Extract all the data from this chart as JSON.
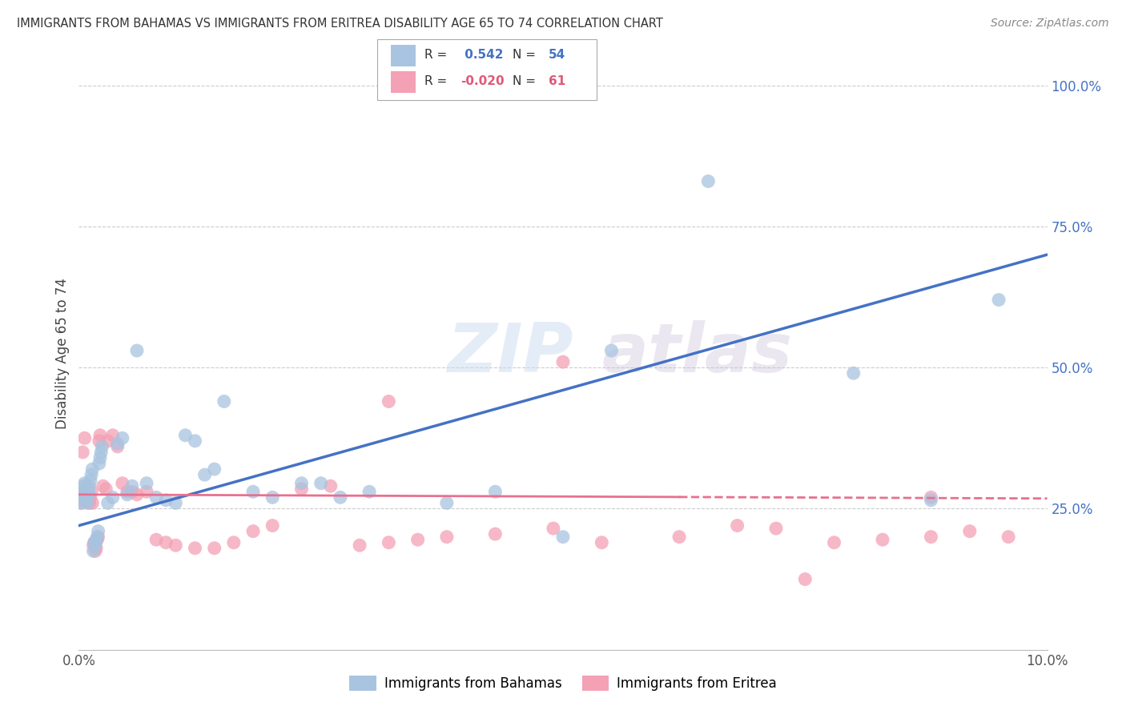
{
  "title": "IMMIGRANTS FROM BAHAMAS VS IMMIGRANTS FROM ERITREA DISABILITY AGE 65 TO 74 CORRELATION CHART",
  "source": "Source: ZipAtlas.com",
  "ylabel": "Disability Age 65 to 74",
  "xmin": 0.0,
  "xmax": 0.1,
  "ymin": 0.0,
  "ymax": 1.05,
  "x_tick_positions": [
    0.0,
    0.02,
    0.04,
    0.06,
    0.08,
    0.1
  ],
  "x_tick_labels": [
    "0.0%",
    "",
    "",
    "",
    "",
    "10.0%"
  ],
  "y_ticks_right": [
    0.25,
    0.5,
    0.75,
    1.0
  ],
  "y_tick_labels_right": [
    "25.0%",
    "50.0%",
    "75.0%",
    "100.0%"
  ],
  "legend_r_bahamas": "0.542",
  "legend_n_bahamas": "54",
  "legend_r_eritrea": "-0.020",
  "legend_n_eritrea": "61",
  "color_bahamas": "#a8c4e0",
  "color_eritrea": "#f4a0b5",
  "color_line_bahamas": "#4472c4",
  "color_line_eritrea": "#e87090",
  "watermark": "ZIPatlas",
  "bahamas_x": [
    0.0002,
    0.0003,
    0.0004,
    0.0005,
    0.0006,
    0.0007,
    0.0008,
    0.0009,
    0.001,
    0.001,
    0.0011,
    0.0012,
    0.0013,
    0.0014,
    0.0015,
    0.0016,
    0.0017,
    0.0018,
    0.0019,
    0.002,
    0.0021,
    0.0022,
    0.0023,
    0.0024,
    0.003,
    0.0035,
    0.004,
    0.0045,
    0.005,
    0.0055,
    0.006,
    0.007,
    0.008,
    0.009,
    0.01,
    0.011,
    0.012,
    0.013,
    0.014,
    0.015,
    0.018,
    0.02,
    0.023,
    0.025,
    0.027,
    0.03,
    0.038,
    0.043,
    0.05,
    0.055,
    0.065,
    0.08,
    0.088,
    0.095
  ],
  "bahamas_y": [
    0.26,
    0.27,
    0.28,
    0.29,
    0.295,
    0.27,
    0.265,
    0.26,
    0.275,
    0.28,
    0.29,
    0.3,
    0.31,
    0.32,
    0.175,
    0.19,
    0.185,
    0.195,
    0.2,
    0.21,
    0.33,
    0.34,
    0.35,
    0.36,
    0.26,
    0.27,
    0.365,
    0.375,
    0.275,
    0.29,
    0.53,
    0.295,
    0.27,
    0.265,
    0.26,
    0.38,
    0.37,
    0.31,
    0.32,
    0.44,
    0.28,
    0.27,
    0.295,
    0.295,
    0.27,
    0.28,
    0.26,
    0.28,
    0.2,
    0.53,
    0.83,
    0.49,
    0.265,
    0.62
  ],
  "eritrea_x": [
    0.0001,
    0.0002,
    0.0003,
    0.0004,
    0.0005,
    0.0006,
    0.0007,
    0.0008,
    0.0009,
    0.001,
    0.0011,
    0.0012,
    0.0013,
    0.0014,
    0.0015,
    0.0016,
    0.0017,
    0.0018,
    0.0019,
    0.002,
    0.0021,
    0.0022,
    0.0025,
    0.0028,
    0.003,
    0.0035,
    0.004,
    0.0045,
    0.005,
    0.0055,
    0.006,
    0.007,
    0.008,
    0.009,
    0.01,
    0.012,
    0.014,
    0.016,
    0.018,
    0.02,
    0.023,
    0.026,
    0.029,
    0.032,
    0.035,
    0.038,
    0.043,
    0.049,
    0.054,
    0.062,
    0.068,
    0.072,
    0.078,
    0.083,
    0.088,
    0.092,
    0.096,
    0.032,
    0.05,
    0.075,
    0.088
  ],
  "eritrea_y": [
    0.27,
    0.265,
    0.26,
    0.35,
    0.28,
    0.375,
    0.29,
    0.285,
    0.265,
    0.27,
    0.26,
    0.27,
    0.28,
    0.26,
    0.185,
    0.19,
    0.175,
    0.18,
    0.195,
    0.2,
    0.37,
    0.38,
    0.29,
    0.285,
    0.37,
    0.38,
    0.36,
    0.295,
    0.28,
    0.28,
    0.275,
    0.28,
    0.195,
    0.19,
    0.185,
    0.18,
    0.18,
    0.19,
    0.21,
    0.22,
    0.285,
    0.29,
    0.185,
    0.19,
    0.195,
    0.2,
    0.205,
    0.215,
    0.19,
    0.2,
    0.22,
    0.215,
    0.19,
    0.195,
    0.2,
    0.21,
    0.2,
    0.44,
    0.51,
    0.125,
    0.27
  ]
}
